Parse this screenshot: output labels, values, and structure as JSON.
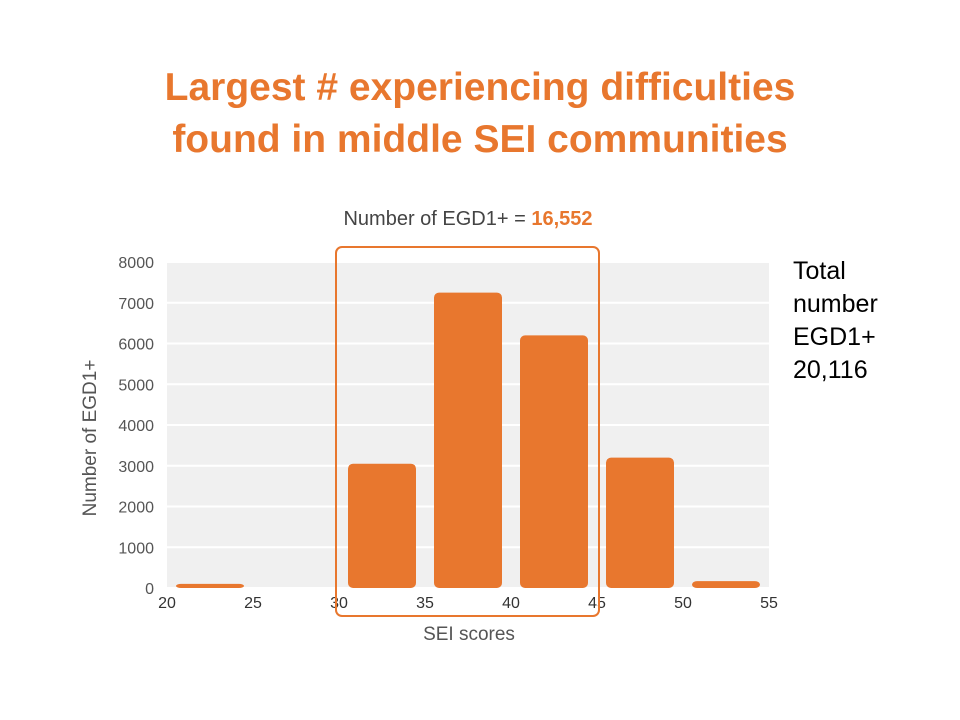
{
  "slide": {
    "title_line1": "Largest # experiencing difficulties",
    "title_line2": "found in middle SEI communities"
  },
  "side_note": {
    "lines": [
      "Total",
      "number",
      "EGD1+",
      "20,116"
    ]
  },
  "colors": {
    "accent": "#E8772E",
    "bar": "#E8772E",
    "plot_bg": "#F0F0F0",
    "axis_text": "#555555"
  },
  "chart_data": {
    "type": "bar",
    "subtitle_prefix": "Number of EGD1+ = ",
    "subtitle_value": "16,552",
    "xlabel": "SEI scores",
    "ylabel": "Number of EGD1+",
    "bins": [
      [
        20,
        25
      ],
      [
        25,
        30
      ],
      [
        30,
        35
      ],
      [
        35,
        40
      ],
      [
        40,
        45
      ],
      [
        45,
        50
      ],
      [
        50,
        55
      ]
    ],
    "values": [
      100,
      0,
      3050,
      7250,
      6200,
      3200,
      170
    ],
    "xlim": [
      20,
      55
    ],
    "ylim": [
      0,
      8000
    ],
    "x_ticks": [
      "20",
      "25",
      "30",
      "35",
      "40",
      "45",
      "50",
      "55"
    ],
    "y_ticks": [
      "0",
      "1000",
      "2000",
      "3000",
      "4000",
      "5000",
      "6000",
      "7000",
      "8000"
    ],
    "highlight_range": [
      30,
      45
    ],
    "grid": true,
    "legend": "none"
  }
}
